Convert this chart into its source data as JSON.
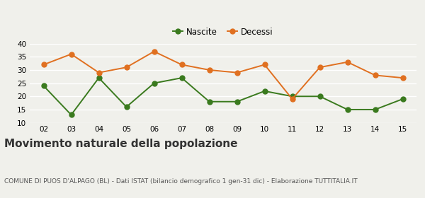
{
  "years": [
    "02",
    "03",
    "04",
    "05",
    "06",
    "07",
    "08",
    "09",
    "10",
    "11",
    "12",
    "13",
    "14",
    "15"
  ],
  "nascite": [
    24,
    13,
    27,
    16,
    25,
    27,
    18,
    18,
    22,
    20,
    20,
    15,
    15,
    19
  ],
  "decessi": [
    32,
    36,
    29,
    31,
    37,
    32,
    30,
    29,
    32,
    19,
    31,
    33,
    28,
    27
  ],
  "nascite_color": "#3a7a1e",
  "decessi_color": "#e07020",
  "bg_color": "#f0f0eb",
  "ylim": [
    10,
    40
  ],
  "yticks": [
    10,
    15,
    20,
    25,
    30,
    35,
    40
  ],
  "title": "Movimento naturale della popolazione",
  "subtitle": "COMUNE DI PUOS D'ALPAGO (BL) - Dati ISTAT (bilancio demografico 1 gen-31 dic) - Elaborazione TUTTITALIA.IT",
  "legend_nascite": "Nascite",
  "legend_decessi": "Decessi",
  "title_fontsize": 11,
  "subtitle_fontsize": 6.5,
  "marker_size": 5,
  "linewidth": 1.4
}
